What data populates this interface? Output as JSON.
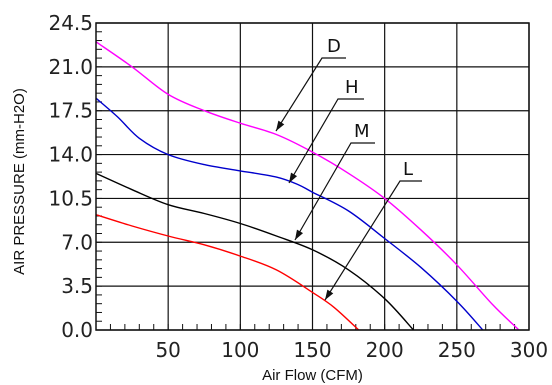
{
  "chart_data": {
    "type": "line",
    "xlabel": "Air Flow (CFM)",
    "ylabel": "AIR PRESSURE (mm-H2O)",
    "xlim": [
      0,
      300
    ],
    "ylim": [
      0,
      24.5
    ],
    "x_ticks": [
      "50",
      "100",
      "150",
      "200",
      "250",
      "300"
    ],
    "y_ticks": [
      "0.0",
      "3.5",
      "7.0",
      "10.5",
      "14.0",
      "17.5",
      "21.0",
      "24.5"
    ],
    "grid": true,
    "series": [
      {
        "name": "D",
        "color": "#ff00ff",
        "points": [
          [
            0,
            23.0
          ],
          [
            25,
            21.0
          ],
          [
            50,
            18.8
          ],
          [
            75,
            17.5
          ],
          [
            100,
            16.5
          ],
          [
            125,
            15.6
          ],
          [
            150,
            14.2
          ],
          [
            175,
            12.5
          ],
          [
            200,
            10.5
          ],
          [
            225,
            8.0
          ],
          [
            250,
            5.2
          ],
          [
            275,
            2.0
          ],
          [
            293,
            0.0
          ]
        ]
      },
      {
        "name": "H",
        "color": "#0000cc",
        "points": [
          [
            0,
            18.5
          ],
          [
            15,
            17.0
          ],
          [
            30,
            15.3
          ],
          [
            50,
            14.0
          ],
          [
            75,
            13.2
          ],
          [
            100,
            12.7
          ],
          [
            125,
            12.2
          ],
          [
            140,
            11.6
          ],
          [
            150,
            11.0
          ],
          [
            175,
            9.5
          ],
          [
            200,
            7.3
          ],
          [
            225,
            5.0
          ],
          [
            250,
            2.3
          ],
          [
            268,
            0.0
          ]
        ]
      },
      {
        "name": "M",
        "color": "#000000",
        "points": [
          [
            0,
            12.5
          ],
          [
            25,
            11.2
          ],
          [
            50,
            10.0
          ],
          [
            75,
            9.3
          ],
          [
            100,
            8.5
          ],
          [
            125,
            7.5
          ],
          [
            150,
            6.4
          ],
          [
            175,
            4.8
          ],
          [
            200,
            2.5
          ],
          [
            220,
            0.0
          ]
        ]
      },
      {
        "name": "L",
        "color": "#ff0000",
        "points": [
          [
            0,
            9.2
          ],
          [
            25,
            8.3
          ],
          [
            50,
            7.5
          ],
          [
            75,
            6.8
          ],
          [
            100,
            5.9
          ],
          [
            125,
            4.8
          ],
          [
            150,
            3.0
          ],
          [
            165,
            1.8
          ],
          [
            182,
            0.0
          ]
        ]
      }
    ]
  }
}
